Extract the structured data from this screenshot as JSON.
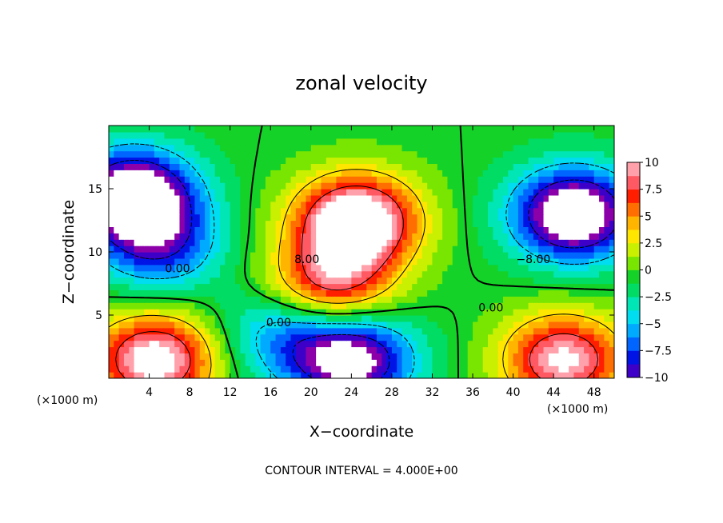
{
  "chart_data": {
    "type": "contour",
    "title": "zonal velocity",
    "xlabel": "X−coordinate",
    "ylabel": "Z−coordinate",
    "x_unit_left": "(×1000 m)",
    "x_unit_right": "(×1000 m)",
    "footer": "CONTOUR INTERVAL = 4.000E+00",
    "xlim": [
      0,
      50
    ],
    "ylim": [
      0,
      20
    ],
    "x_ticks": [
      {
        "v": 4,
        "label": "4"
      },
      {
        "v": 8,
        "label": "8"
      },
      {
        "v": 12,
        "label": "12"
      },
      {
        "v": 16,
        "label": "16"
      },
      {
        "v": 20,
        "label": "20"
      },
      {
        "v": 24,
        "label": "24"
      },
      {
        "v": 28,
        "label": "28"
      },
      {
        "v": 32,
        "label": "32"
      },
      {
        "v": 36,
        "label": "36"
      },
      {
        "v": 40,
        "label": "40"
      },
      {
        "v": 44,
        "label": "44"
      },
      {
        "v": 48,
        "label": "48"
      }
    ],
    "y_ticks": [
      {
        "v": 5,
        "label": "5"
      },
      {
        "v": 10,
        "label": "10"
      },
      {
        "v": 15,
        "label": "15"
      }
    ],
    "colorbar": {
      "range": [
        -10,
        10
      ],
      "ticks": [
        {
          "v": 10,
          "label": "10"
        },
        {
          "v": 7.5,
          "label": "7.5"
        },
        {
          "v": 5,
          "label": "5"
        },
        {
          "v": 2.5,
          "label": "2.5"
        },
        {
          "v": 0,
          "label": "0"
        },
        {
          "v": -2.5,
          "label": "−2.5"
        },
        {
          "v": -5,
          "label": "−5"
        },
        {
          "v": -7.5,
          "label": "−7.5"
        },
        {
          "v": -10,
          "label": "−10"
        }
      ]
    },
    "contour_levels": [
      -8,
      -4,
      0,
      4,
      8
    ],
    "contour_labels": [
      {
        "x": 6.8,
        "z": 8.4,
        "text": "0.00"
      },
      {
        "x": 16.8,
        "z": 4.1,
        "text": "0.00"
      },
      {
        "x": 19.6,
        "z": 9.1,
        "text": "8.00"
      },
      {
        "x": 37.8,
        "z": 5.3,
        "text": "0.00"
      },
      {
        "x": 42.0,
        "z": 9.1,
        "text": "−8.00"
      }
    ],
    "field_features": [
      {
        "type": "max",
        "x": 24.5,
        "z": 12.5,
        "value": 14
      },
      {
        "type": "max",
        "x": 22.0,
        "z": 7.5,
        "value": 9
      },
      {
        "type": "min",
        "x": 2.5,
        "z": 14.5,
        "value": -14
      },
      {
        "type": "min",
        "x": 46.0,
        "z": 13.0,
        "value": -14
      },
      {
        "type": "min",
        "x": 24.0,
        "z": 1.5,
        "value": -12
      },
      {
        "type": "max",
        "x": 4.5,
        "z": 1.5,
        "value": 12
      },
      {
        "type": "max",
        "x": 45.0,
        "z": 1.5,
        "value": 11
      },
      {
        "type": "min",
        "x": 5.0,
        "z": 10.5,
        "value": -7
      },
      {
        "type": "min",
        "x": 17.0,
        "z": 3.5,
        "value": -5
      }
    ]
  }
}
